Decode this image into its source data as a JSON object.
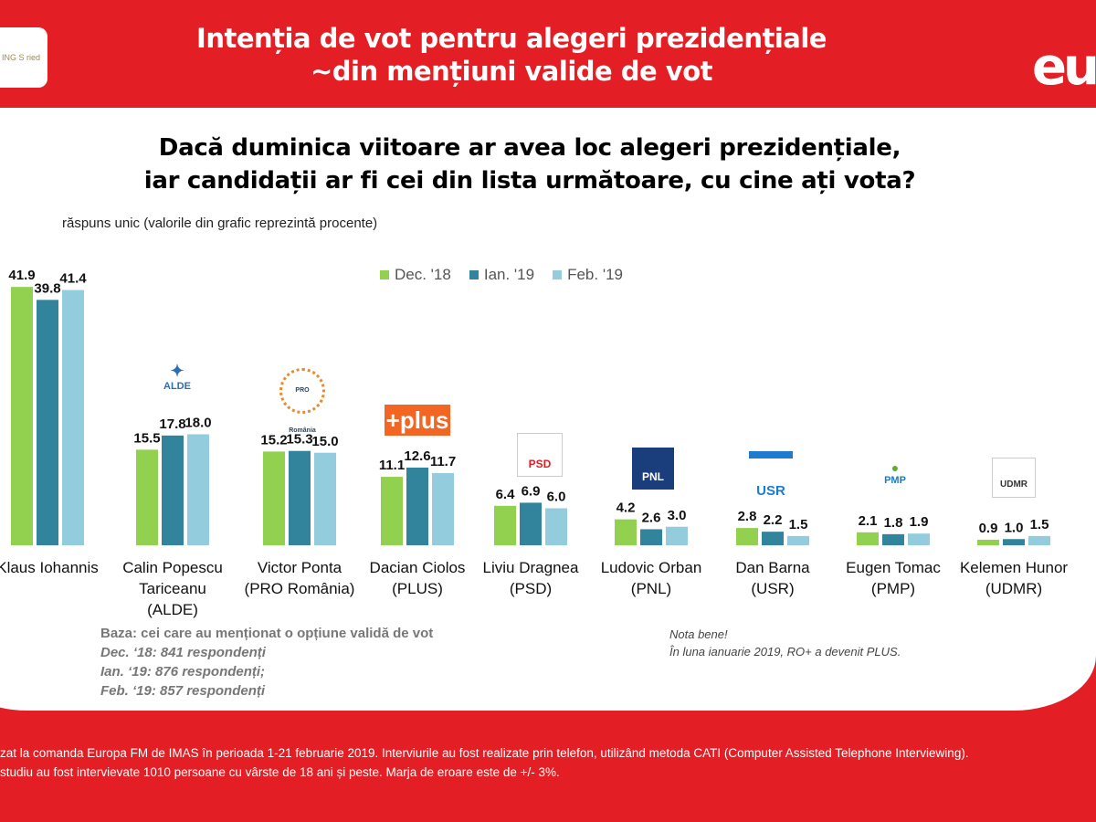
{
  "header": {
    "title_line1": "Intenția de vot pentru alegeri prezidențiale",
    "title_line2": "~din mențiuni valide de vot",
    "left_logo": "ING S ried",
    "right_logo": "eu"
  },
  "question_line1": "Dacă duminica viitoare ar avea loc alegeri prezidențiale,",
  "question_line2": "iar candidații ar fi cei din lista următoare, cu cine ați vota?",
  "subtitle": "răspuns unic (valorile din grafic reprezintă procente)",
  "colors": {
    "background": "#e31e24",
    "dec18": "#92d050",
    "ian19": "#31849b",
    "feb19": "#93cddd"
  },
  "chart_data": {
    "type": "bar",
    "categories": [
      [
        "Klaus Iohannis"
      ],
      [
        "Calin Popescu",
        "Tariceanu",
        "(ALDE)"
      ],
      [
        "Victor Ponta",
        "(PRO România)"
      ],
      [
        "Dacian Ciolos",
        "(PLUS)"
      ],
      [
        "Liviu Dragnea",
        "(PSD)"
      ],
      [
        "Ludovic Orban",
        "(PNL)"
      ],
      [
        "Dan Barna",
        "(USR)"
      ],
      [
        "Eugen Tomac",
        "(PMP)"
      ],
      [
        "Kelemen Hunor",
        "(UDMR)"
      ]
    ],
    "series": [
      {
        "name": "Dec. '18",
        "color": "#92d050",
        "values": [
          41.9,
          15.5,
          15.2,
          11.1,
          6.4,
          4.2,
          2.8,
          2.1,
          0.9
        ],
        "labels": [
          "41.9",
          "15.5",
          "15.2",
          "11.1",
          "6.4",
          "4.2",
          "2.8",
          "2.1",
          "0.9"
        ]
      },
      {
        "name": "Ian. '19",
        "color": "#31849b",
        "values": [
          39.8,
          17.8,
          15.3,
          12.6,
          6.9,
          2.6,
          2.2,
          1.8,
          1.0
        ],
        "labels": [
          "39.8",
          "17.8",
          "15.3",
          "12.6",
          "6.9",
          "2.6",
          "2.2",
          "1.8",
          "1.0"
        ]
      },
      {
        "name": "Feb. '19",
        "color": "#93cddd",
        "values": [
          41.4,
          18.0,
          15.0,
          11.7,
          6.0,
          3.0,
          1.5,
          1.9,
          1.5
        ],
        "labels": [
          "41.4",
          "18.0",
          "15.0",
          "11.7",
          "6.0",
          "3.0",
          "1.5",
          "1.9",
          "1.5"
        ]
      }
    ],
    "legend": "top",
    "grid": false,
    "ylim": [
      0,
      45
    ]
  },
  "party_logos": [
    "ALDE",
    "PRO România",
    "+plus",
    "PSD",
    "PNL",
    "USR",
    "PMP",
    "UDMR"
  ],
  "base": {
    "title": "Baza: cei care au menționat o opțiune validă de vot",
    "lines": [
      "Dec. ‘18: 841 respondenți",
      "Ian. ‘19: 876 respondenți;",
      "Feb. ‘19: 857 respondenți"
    ]
  },
  "note": {
    "line1": "Nota bene!",
    "line2": "În luna ianuarie 2019,  RO+ a devenit PLUS."
  },
  "footer": {
    "line1": "zat la comanda Europa FM de IMAS în perioada 1-21 februarie 2019. Interviurile au fost realizate prin telefon, utilizând metoda CATI (Computer Assisted Telephone Interviewing).",
    "line2": "studiu au fost intervievate 1010 persoane cu vârste de 18 ani și peste. Marja de eroare este de +/- 3%."
  }
}
